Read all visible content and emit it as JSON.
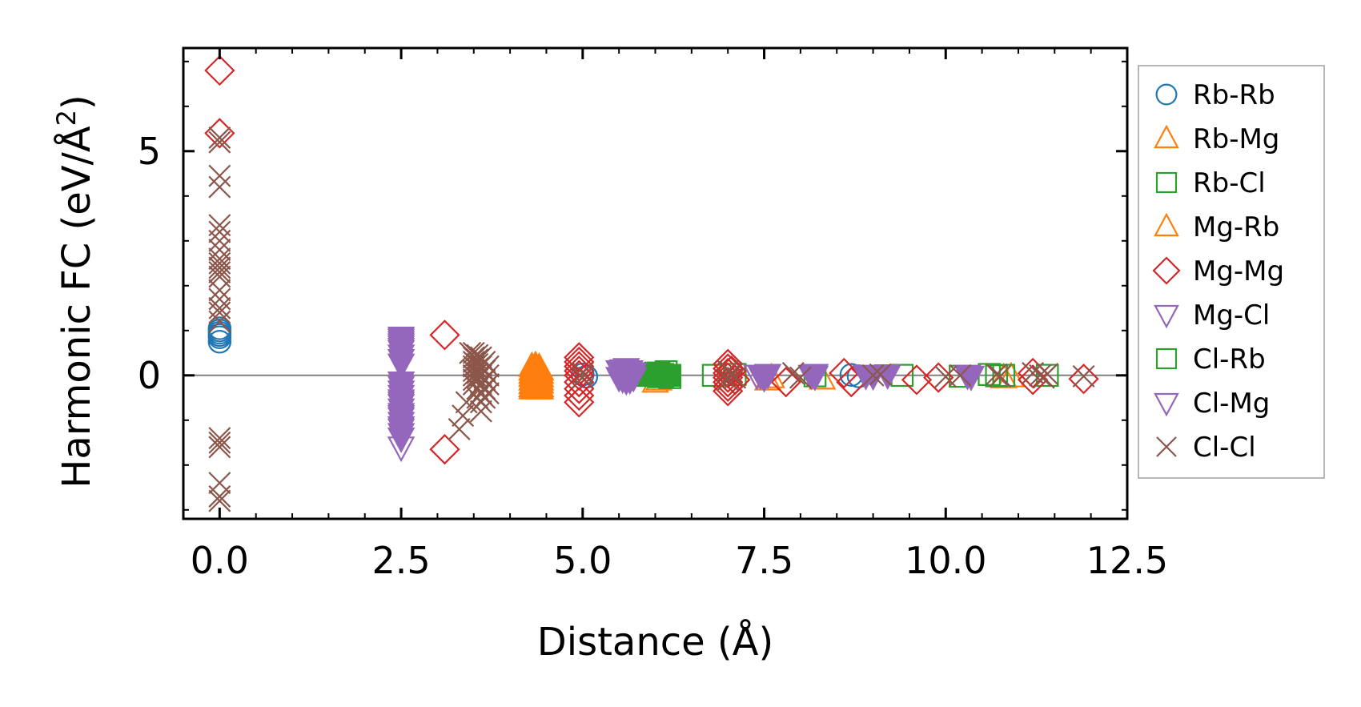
{
  "chart_data": {
    "type": "scatter",
    "title": "",
    "xlabel": "Distance (Å)",
    "ylabel": "Harmonic FC (eV/Å",
    "ylabel_sup": "2",
    "ylabel_end": ")",
    "xlim": [
      -0.5,
      12.5
    ],
    "ylim": [
      -3.2,
      7.3
    ],
    "xticks": [
      0.0,
      2.5,
      5.0,
      7.5,
      10.0,
      12.5
    ],
    "xtick_labels": [
      "0.0",
      "2.5",
      "5.0",
      "7.5",
      "10.0",
      "12.5"
    ],
    "yticks": [
      0,
      5
    ],
    "ytick_labels": [
      "0",
      "5"
    ],
    "reference_line_y": 0,
    "legend_position": "right-outside",
    "series": [
      {
        "name": "Rb-Rb",
        "marker": "circle",
        "color": "#1f77b4",
        "filled": false,
        "x": [
          0,
          0,
          0,
          0,
          0,
          0,
          5.0,
          5.05,
          8.7,
          8.8
        ],
        "y": [
          0.75,
          0.85,
          0.95,
          1.0,
          1.05,
          0.9,
          0.02,
          -0.03,
          0.01,
          -0.02
        ]
      },
      {
        "name": "Rb-Mg",
        "marker": "triangle-up",
        "color": "#ff7f0e",
        "filled": false,
        "x": [
          6.0,
          6.05,
          7.55,
          7.6,
          8.3,
          10.8,
          10.9
        ],
        "y": [
          -0.15,
          -0.1,
          -0.1,
          -0.05,
          -0.08,
          -0.05,
          -0.03
        ]
      },
      {
        "name": "Rb-Cl",
        "marker": "square",
        "color": "#2ca02c",
        "filled": false,
        "x": [
          6.05,
          6.1,
          6.15,
          6.2,
          6.8,
          7.1,
          8.2,
          9.4,
          10.2,
          10.6,
          10.7,
          10.8,
          11.4
        ],
        "y": [
          0.05,
          -0.02,
          0.08,
          -0.05,
          0.0,
          0.02,
          -0.01,
          0.0,
          -0.02,
          0.02,
          -0.01,
          0.0,
          0.0
        ]
      },
      {
        "name": "Mg-Rb",
        "marker": "triangle-up",
        "color": "#ff7f0e",
        "filled": true,
        "x": [
          4.3,
          4.3,
          4.3,
          4.3,
          4.3,
          4.3,
          4.3,
          4.3,
          4.35,
          4.35,
          4.35,
          4.35,
          4.35,
          4.35,
          4.35,
          4.35,
          4.4,
          4.4,
          4.4,
          4.4,
          4.4,
          4.4,
          4.4,
          4.4,
          4.42,
          4.42,
          4.42,
          4.42,
          4.42,
          4.42,
          4.42
        ],
        "y": [
          0.2,
          0.12,
          0.05,
          -0.02,
          -0.1,
          -0.18,
          -0.25,
          -0.3,
          0.22,
          0.15,
          0.08,
          0.0,
          -0.08,
          -0.15,
          -0.22,
          -0.3,
          0.18,
          0.1,
          0.03,
          -0.05,
          -0.12,
          -0.2,
          -0.27,
          -0.3,
          0.12,
          0.05,
          -0.03,
          -0.1,
          -0.17,
          -0.25,
          -0.3
        ]
      },
      {
        "name": "Mg-Mg",
        "marker": "diamond",
        "color": "#d62728",
        "filled": false,
        "x": [
          0,
          0,
          3.1,
          3.1,
          4.95,
          4.95,
          4.95,
          4.95,
          4.95,
          4.95,
          4.95,
          4.95,
          4.95,
          7.0,
          7.0,
          7.0,
          7.0,
          7.0,
          7.0,
          7.0,
          7.05,
          7.1,
          7.8,
          8.6,
          8.7,
          9.6,
          9.9,
          11.2,
          11.2,
          11.9
        ],
        "y": [
          6.8,
          5.4,
          0.9,
          -1.65,
          0.4,
          0.3,
          0.2,
          0.1,
          0.0,
          -0.15,
          -0.3,
          -0.45,
          -0.6,
          0.25,
          0.15,
          0.05,
          -0.05,
          -0.15,
          -0.25,
          -0.35,
          0.1,
          -0.1,
          -0.15,
          0.05,
          -0.15,
          -0.1,
          -0.05,
          0.05,
          -0.1,
          -0.08
        ]
      },
      {
        "name": "Mg-Cl",
        "marker": "triangle-down",
        "color": "#9467bd",
        "filled": false,
        "x": [
          2.5,
          2.5,
          2.5,
          2.5,
          2.5,
          5.55,
          5.6,
          5.65,
          7.4,
          7.5,
          8.2
        ],
        "y": [
          -1.6,
          -1.2,
          -0.9,
          -0.6,
          0.6,
          0.0,
          -0.05,
          0.05,
          0.0,
          -0.05,
          0.02
        ]
      },
      {
        "name": "Cl-Rb",
        "marker": "square",
        "color": "#2ca02c",
        "filled": true,
        "x": [
          5.9,
          6.0,
          6.05,
          6.1,
          6.2
        ],
        "y": [
          0.0,
          0.05,
          -0.03,
          0.02,
          0.0
        ]
      },
      {
        "name": "Cl-Mg",
        "marker": "triangle-down",
        "color": "#9467bd",
        "filled": true,
        "x": [
          2.5,
          2.5,
          2.5,
          2.5,
          2.5,
          2.5,
          2.5,
          2.5,
          2.5,
          2.5,
          2.5,
          2.5,
          2.5,
          2.5,
          2.5,
          2.5,
          2.5,
          2.5,
          2.5,
          2.5,
          2.5,
          2.5,
          5.5,
          5.5,
          5.55,
          5.55,
          5.6,
          5.6,
          5.6,
          5.65,
          5.65,
          5.7,
          5.7,
          7.45,
          7.5,
          7.55,
          8.15,
          8.2,
          8.9,
          9.0,
          9.2,
          10.3,
          10.35
        ],
        "y": [
          0.85,
          0.8,
          0.75,
          0.7,
          0.65,
          0.55,
          0.45,
          0.35,
          0.25,
          -0.15,
          -0.25,
          -0.35,
          -0.45,
          -0.55,
          -0.65,
          -0.75,
          -0.85,
          -0.95,
          -1.05,
          -1.15,
          -1.3,
          -1.4,
          0.1,
          -0.05,
          0.12,
          -0.08,
          0.15,
          0.0,
          -0.12,
          0.1,
          -0.1,
          0.05,
          -0.05,
          0.0,
          -0.05,
          0.02,
          0.0,
          -0.02,
          0.0,
          -0.01,
          0.01,
          0.0,
          -0.02
        ]
      },
      {
        "name": "Cl-Cl",
        "marker": "x",
        "color": "#8c564b",
        "filled": false,
        "x": [
          0,
          0,
          0,
          0,
          0,
          0,
          0,
          0,
          0,
          0,
          0,
          0,
          0,
          0,
          0,
          0,
          0,
          0,
          0,
          0,
          0,
          0,
          0,
          0,
          3.3,
          3.35,
          3.4,
          3.45,
          3.5,
          3.5,
          3.5,
          3.5,
          3.5,
          3.5,
          3.5,
          3.5,
          3.55,
          3.55,
          3.55,
          3.55,
          3.55,
          3.55,
          3.55,
          3.55,
          3.6,
          3.6,
          3.6,
          3.6,
          3.6,
          3.6,
          3.6,
          3.65,
          3.65,
          3.65,
          3.65,
          3.65,
          3.7,
          3.7,
          3.7,
          3.7,
          5.0,
          5.0,
          7.0,
          7.0,
          7.05,
          7.1,
          7.9,
          8.0,
          9.0,
          9.1,
          10.0,
          10.2,
          10.7,
          10.75,
          11.2,
          11.3,
          11.35,
          11.4,
          11.9
        ],
        "y": [
          5.3,
          5.2,
          4.45,
          4.2,
          3.35,
          3.2,
          3.0,
          2.8,
          2.6,
          2.5,
          2.4,
          2.3,
          2.2,
          1.9,
          1.7,
          1.5,
          1.4,
          1.2,
          -1.4,
          -1.5,
          -1.6,
          -2.4,
          -2.7,
          -2.8,
          -1.2,
          -0.9,
          -0.6,
          0.5,
          0.5,
          0.4,
          0.3,
          0.2,
          0.1,
          0.0,
          -0.1,
          -0.2,
          0.45,
          0.35,
          0.25,
          0.15,
          0.05,
          -0.05,
          -0.3,
          -0.5,
          0.4,
          0.2,
          0.0,
          -0.2,
          -0.4,
          -0.6,
          -0.8,
          0.3,
          0.1,
          -0.1,
          -0.3,
          -0.5,
          0.2,
          0.0,
          -0.2,
          -0.4,
          0.05,
          -0.05,
          0.1,
          -0.1,
          0.05,
          -0.05,
          0.05,
          -0.05,
          0.0,
          0.02,
          -0.03,
          0.0,
          0.02,
          -0.02,
          0.05,
          0.0,
          -0.05,
          0.03,
          -0.02
        ]
      }
    ]
  }
}
